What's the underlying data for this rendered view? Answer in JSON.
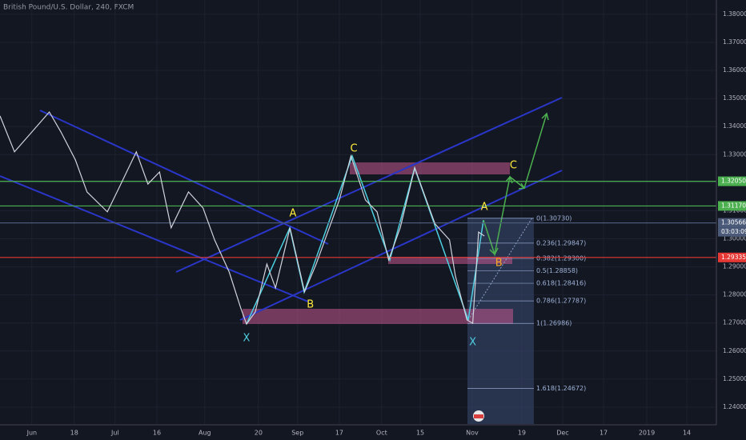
{
  "chart_data": {
    "type": "line",
    "title": "British Pound/U.S. Dollar, 240, FXCM",
    "series": [
      {
        "name": "GBPUSD",
        "color": "#d1d4dc",
        "x": [
          -11,
          -6,
          0,
          6,
          10,
          15,
          19,
          26,
          30,
          36,
          40,
          44,
          48,
          54,
          59,
          63,
          68,
          72,
          74,
          77,
          81,
          84,
          89,
          94,
          98,
          102,
          106,
          110,
          115,
          119,
          123,
          127,
          132,
          135,
          139,
          144,
          146,
          150,
          152,
          154,
          156
        ],
        "values": [
          1.3438,
          1.331,
          1.3381,
          1.3452,
          1.3381,
          1.3281,
          1.3167,
          1.3096,
          1.3181,
          1.331,
          1.3195,
          1.3238,
          1.3039,
          1.3167,
          1.311,
          1.2996,
          1.2882,
          1.2754,
          1.2696,
          1.2739,
          1.291,
          1.2825,
          1.3039,
          1.2811,
          1.291,
          1.3024,
          1.3138,
          1.3295,
          1.3138,
          1.3096,
          1.2925,
          1.3039,
          1.3253,
          1.3167,
          1.3053,
          1.2996,
          1.2868,
          1.2711,
          1.2699,
          1.3024,
          1.301
        ]
      }
    ],
    "xlim": [
      -11,
      236
    ],
    "ylim": [
      1.234,
      1.3851
    ],
    "xticks": [
      {
        "value": 0,
        "label": "Jun"
      },
      {
        "value": 14.6,
        "label": "18"
      },
      {
        "value": 28.7,
        "label": "Jul"
      },
      {
        "value": 43.1,
        "label": "16"
      },
      {
        "value": 59.6,
        "label": "Aug"
      },
      {
        "value": 78.1,
        "label": "20"
      },
      {
        "value": 91.6,
        "label": "Sep"
      },
      {
        "value": 106,
        "label": "17"
      },
      {
        "value": 120.6,
        "label": "Oct"
      },
      {
        "value": 133.9,
        "label": "15"
      },
      {
        "value": 151.8,
        "label": "Nov"
      },
      {
        "value": 168.9,
        "label": "19"
      },
      {
        "value": 183,
        "label": "Dec"
      },
      {
        "value": 197.1,
        "label": "17"
      },
      {
        "value": 212,
        "label": "2019"
      },
      {
        "value": 225.8,
        "label": "14"
      }
    ],
    "yticks": [
      {
        "value": 1.38,
        "label": "1.38000"
      },
      {
        "value": 1.37,
        "label": "1.37000"
      },
      {
        "value": 1.36,
        "label": "1.36000"
      },
      {
        "value": 1.35,
        "label": "1.35000"
      },
      {
        "value": 1.34,
        "label": "1.34000"
      },
      {
        "value": 1.33,
        "label": "1.33000"
      },
      {
        "value": 1.32,
        "label": "1.32000"
      },
      {
        "value": 1.31,
        "label": "1.31000"
      },
      {
        "value": 1.3,
        "label": "1.30000"
      },
      {
        "value": 1.29,
        "label": "1.29000"
      },
      {
        "value": 1.28,
        "label": "1.28000"
      },
      {
        "value": 1.27,
        "label": "1.27000"
      },
      {
        "value": 1.26,
        "label": "1.26000"
      },
      {
        "value": 1.25,
        "label": "1.25000"
      },
      {
        "value": 1.24,
        "label": "1.24000"
      }
    ],
    "grid": true,
    "price_labels": [
      {
        "value": 1.3205,
        "label": "1.32050",
        "color": "#4caf50"
      },
      {
        "value": 1.3117,
        "label": "1.31170",
        "color": "#4caf50"
      },
      {
        "value": 1.30566,
        "label": "1.30566",
        "color": "#4a5a78"
      },
      {
        "value": 1.29335,
        "label": "1.29335",
        "color": "#e53935"
      }
    ],
    "countdown": "03:03:09",
    "fib_levels": [
      {
        "label": "0(1.30730)",
        "value": 1.3073
      },
      {
        "label": "0.236(1.29847)",
        "value": 1.29847
      },
      {
        "label": "0.382(1.29300)",
        "value": 1.293
      },
      {
        "label": "0.5(1.28858)",
        "value": 1.28858
      },
      {
        "label": "0.618(1.28416)",
        "value": 1.28416
      },
      {
        "label": "0.786(1.27787)",
        "value": 1.27787
      },
      {
        "label": "1(1.26986)",
        "value": 1.26986
      },
      {
        "label": "1.618(1.24672)",
        "value": 1.24672
      }
    ],
    "annotations": [
      {
        "text": "C",
        "x": 111,
        "y": 1.3321,
        "color": "#ffeb3b"
      },
      {
        "text": "A",
        "x": 90,
        "y": 1.309,
        "color": "#ffeb3b"
      },
      {
        "text": "B",
        "x": 96,
        "y": 1.2765,
        "color": "#ffeb3b"
      },
      {
        "text": "X",
        "x": 74,
        "y": 1.2645,
        "color": "#4dd0e1"
      },
      {
        "text": "A",
        "x": 156,
        "y": 1.3113,
        "color": "#ffeb3b"
      },
      {
        "text": "B",
        "x": 161,
        "y": 1.2913,
        "color": "#f9a825"
      },
      {
        "text": "C",
        "x": 166,
        "y": 1.3261,
        "color": "#ffeb3b"
      },
      {
        "text": "X",
        "x": 152,
        "y": 1.2631,
        "color": "#4dd0e1"
      }
    ]
  }
}
